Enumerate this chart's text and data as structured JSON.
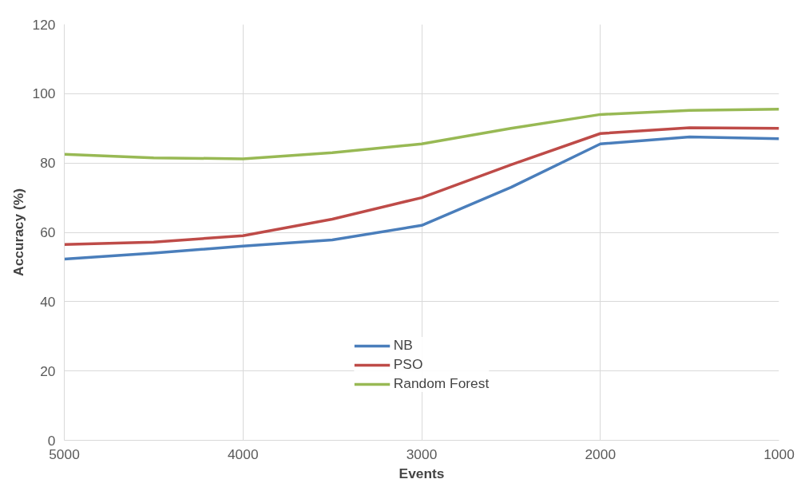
{
  "chart_data": {
    "type": "line",
    "xlabel": "Events",
    "ylabel": "Accuracy (%)",
    "x": [
      5000,
      4500,
      4000,
      3500,
      3000,
      2500,
      2000,
      1500,
      1000
    ],
    "series": [
      {
        "name": "NB",
        "color": "#4a7ebb",
        "values": [
          52.3,
          54,
          56,
          57.8,
          62,
          73,
          85.5,
          87.5,
          87
        ]
      },
      {
        "name": "PSO",
        "color": "#be4b48",
        "values": [
          56.5,
          57.2,
          59,
          63.8,
          70,
          79.5,
          88.5,
          90.2,
          90
        ]
      },
      {
        "name": "Random Forest",
        "color": "#98b954",
        "values": [
          82.5,
          81.5,
          81.2,
          83,
          85.5,
          90,
          94,
          95.2,
          95.5
        ]
      }
    ],
    "xlim": [
      5000,
      1000
    ],
    "xticks": [
      5000,
      4000,
      3000,
      2000,
      1000
    ],
    "ylim": [
      0,
      120
    ],
    "yticks": [
      0,
      20,
      40,
      60,
      80,
      100,
      120
    ],
    "grid": true,
    "legend": "bottom",
    "marker": "none",
    "line_style": "solid"
  }
}
